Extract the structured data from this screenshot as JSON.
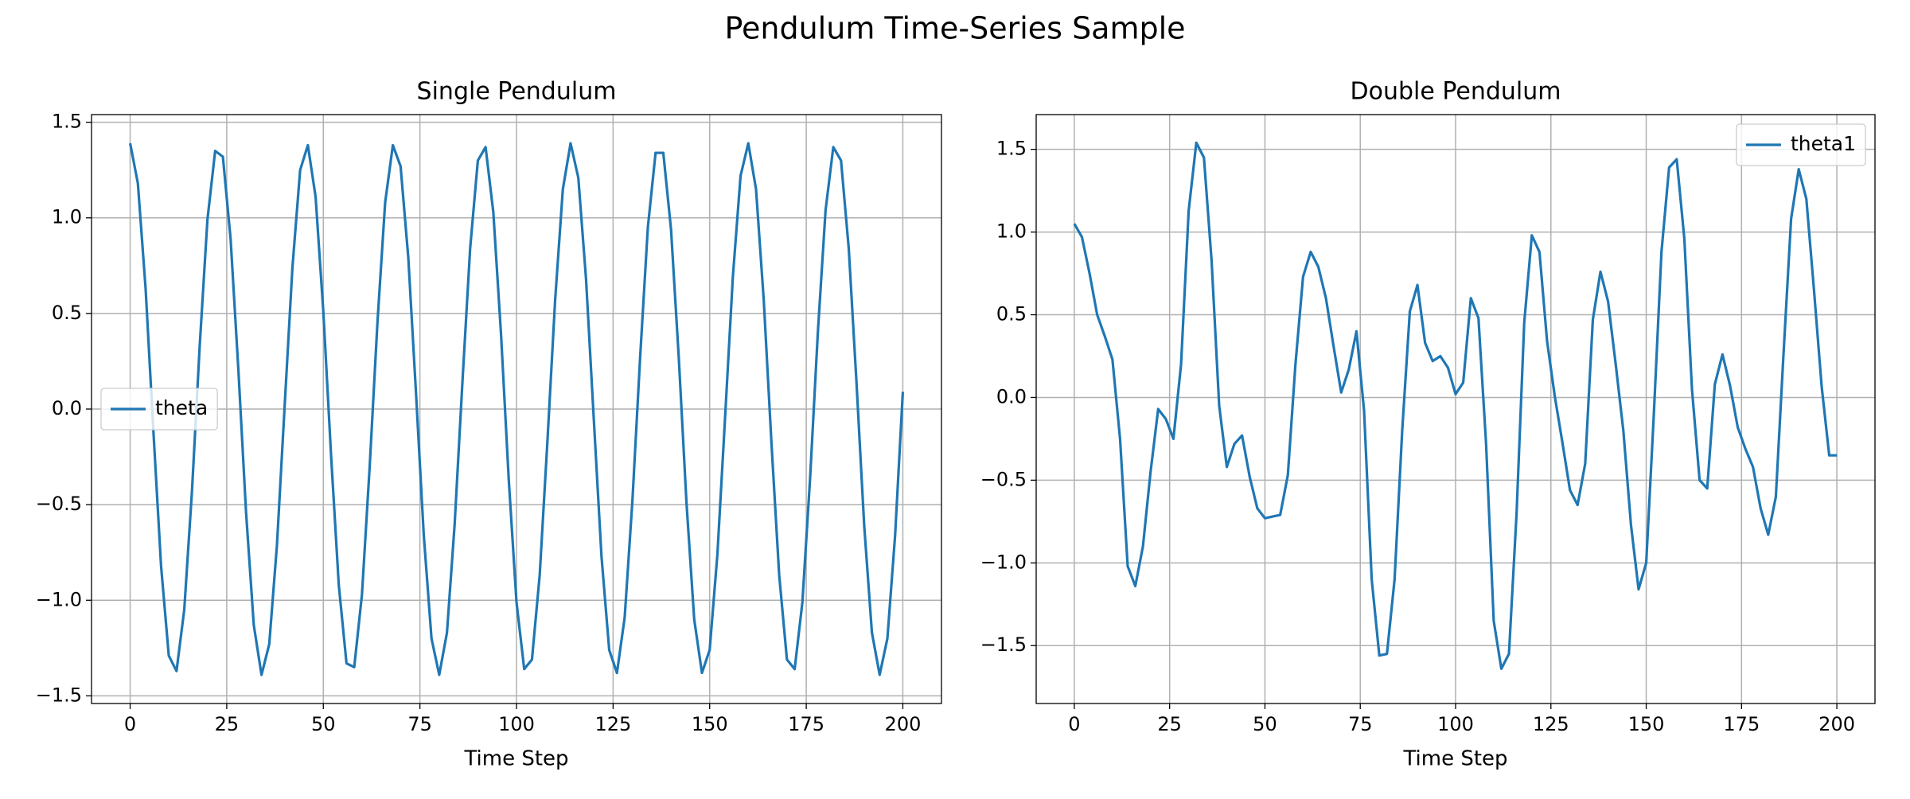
{
  "title": "Pendulum Time-Series Sample",
  "chart_data": [
    {
      "type": "line",
      "title": "Single Pendulum",
      "x_label": "Time Step",
      "x": [
        0,
        2,
        4,
        6,
        8,
        10,
        12,
        14,
        16,
        18,
        20,
        22,
        24,
        26,
        28,
        30,
        32,
        34,
        36,
        38,
        40,
        42,
        44,
        46,
        48,
        50,
        52,
        54,
        56,
        58,
        60,
        62,
        64,
        66,
        68,
        70,
        72,
        74,
        76,
        78,
        80,
        82,
        84,
        86,
        88,
        90,
        92,
        94,
        96,
        98,
        100,
        102,
        104,
        106,
        108,
        110,
        112,
        114,
        116,
        118,
        120,
        122,
        124,
        126,
        128,
        130,
        132,
        134,
        136,
        138,
        140,
        142,
        144,
        146,
        148,
        150,
        152,
        154,
        156,
        158,
        160,
        162,
        164,
        166,
        168,
        170,
        172,
        174,
        176,
        178,
        180,
        182,
        184,
        186,
        188,
        190,
        192,
        194,
        196,
        198,
        200
      ],
      "series": [
        {
          "name": "theta",
          "color": "#1f77b4",
          "values": [
            1.39,
            1.18,
            0.63,
            -0.11,
            -0.82,
            -1.29,
            -1.37,
            -1.05,
            -0.43,
            0.33,
            0.99,
            1.35,
            1.32,
            0.89,
            0.21,
            -0.54,
            -1.13,
            -1.39,
            -1.23,
            -0.71,
            0.02,
            0.74,
            1.25,
            1.38,
            1.11,
            0.51,
            -0.24,
            -0.92,
            -1.33,
            -1.35,
            -0.97,
            -0.3,
            0.45,
            1.08,
            1.38,
            1.27,
            0.79,
            0.08,
            -0.66,
            -1.2,
            -1.39,
            -1.17,
            -0.6,
            0.14,
            0.84,
            1.3,
            1.37,
            1.03,
            0.39,
            -0.37,
            -1.01,
            -1.36,
            -1.31,
            -0.87,
            -0.17,
            0.57,
            1.15,
            1.39,
            1.21,
            0.68,
            -0.05,
            -0.77,
            -1.26,
            -1.38,
            -1.09,
            -0.48,
            0.27,
            0.95,
            1.34,
            1.34,
            0.94,
            0.27,
            -0.49,
            -1.1,
            -1.38,
            -1.26,
            -0.76,
            -0.04,
            0.69,
            1.22,
            1.39,
            1.15,
            0.57,
            -0.18,
            -0.87,
            -1.31,
            -1.36,
            -1.01,
            -0.36,
            0.4,
            1.04,
            1.37,
            1.3,
            0.84,
            0.14,
            -0.61,
            -1.17,
            -1.39,
            -1.2,
            -0.66,
            0.09
          ]
        }
      ],
      "xlim": [
        -10,
        210
      ],
      "ylim": [
        -1.54,
        1.54
      ],
      "xticks": [
        0,
        25,
        50,
        75,
        100,
        125,
        150,
        175,
        200
      ],
      "yticks": [
        {
          "value": -1.5,
          "label": "−1.5"
        },
        {
          "value": -1.0,
          "label": "−1.0"
        },
        {
          "value": -0.5,
          "label": "−0.5"
        },
        {
          "value": 0,
          "label": "0.0"
        },
        0.5,
        {
          "value": 1.0,
          "label": "1.0"
        },
        1.5
      ],
      "grid": true,
      "legend": "center left"
    },
    {
      "type": "line",
      "title": "Double Pendulum",
      "x_label": "Time Step",
      "x": [
        0,
        2,
        4,
        6,
        8,
        10,
        12,
        14,
        16,
        18,
        20,
        22,
        24,
        26,
        28,
        30,
        32,
        34,
        36,
        38,
        40,
        42,
        44,
        46,
        48,
        50,
        52,
        54,
        56,
        58,
        60,
        62,
        64,
        66,
        68,
        70,
        72,
        74,
        76,
        78,
        80,
        82,
        84,
        86,
        88,
        90,
        92,
        94,
        96,
        98,
        100,
        102,
        104,
        106,
        108,
        110,
        112,
        114,
        116,
        118,
        120,
        122,
        124,
        126,
        128,
        130,
        132,
        134,
        136,
        138,
        140,
        142,
        144,
        146,
        148,
        150,
        152,
        154,
        156,
        158,
        160,
        162,
        164,
        166,
        168,
        170,
        172,
        174,
        176,
        178,
        180,
        182,
        184,
        186,
        188,
        190,
        192,
        194,
        196,
        198,
        200
      ],
      "series": [
        {
          "name": "theta1",
          "color": "#1f77b4",
          "values": [
            1.05,
            0.97,
            0.75,
            0.5,
            0.37,
            0.23,
            -0.25,
            -1.02,
            -1.14,
            -0.9,
            -0.45,
            -0.07,
            -0.13,
            -0.25,
            0.2,
            1.13,
            1.54,
            1.45,
            0.83,
            -0.05,
            -0.42,
            -0.28,
            -0.23,
            -0.48,
            -0.67,
            -0.73,
            -0.72,
            -0.71,
            -0.47,
            0.2,
            0.73,
            0.88,
            0.79,
            0.6,
            0.31,
            0.03,
            0.17,
            0.4,
            -0.08,
            -1.1,
            -1.56,
            -1.55,
            -1.1,
            -0.2,
            0.52,
            0.68,
            0.33,
            0.22,
            0.25,
            0.18,
            0.02,
            0.09,
            0.6,
            0.48,
            -0.28,
            -1.35,
            -1.64,
            -1.55,
            -0.7,
            0.45,
            0.98,
            0.88,
            0.34,
            0.01,
            -0.27,
            -0.56,
            -0.65,
            -0.4,
            0.47,
            0.76,
            0.58,
            0.2,
            -0.2,
            -0.77,
            -1.16,
            -1.0,
            -0.1,
            0.88,
            1.39,
            1.44,
            0.96,
            0.05,
            -0.5,
            -0.55,
            0.08,
            0.26,
            0.07,
            -0.18,
            -0.31,
            -0.42,
            -0.67,
            -0.83,
            -0.6,
            0.26,
            1.08,
            1.38,
            1.2,
            0.65,
            0.07,
            -0.35,
            -0.35
          ]
        }
      ],
      "xlim": [
        -10,
        210
      ],
      "ylim": [
        -1.85,
        1.71
      ],
      "xticks": [
        0,
        25,
        50,
        75,
        100,
        125,
        150,
        175,
        200
      ],
      "yticks": [
        {
          "value": -1.5,
          "label": "−1.5"
        },
        {
          "value": -1.0,
          "label": "−1.0"
        },
        {
          "value": -0.5,
          "label": "−0.5"
        },
        {
          "value": 0,
          "label": "0.0"
        },
        0.5,
        {
          "value": 1.0,
          "label": "1.0"
        },
        1.5
      ],
      "grid": true,
      "legend": "upper right"
    }
  ]
}
